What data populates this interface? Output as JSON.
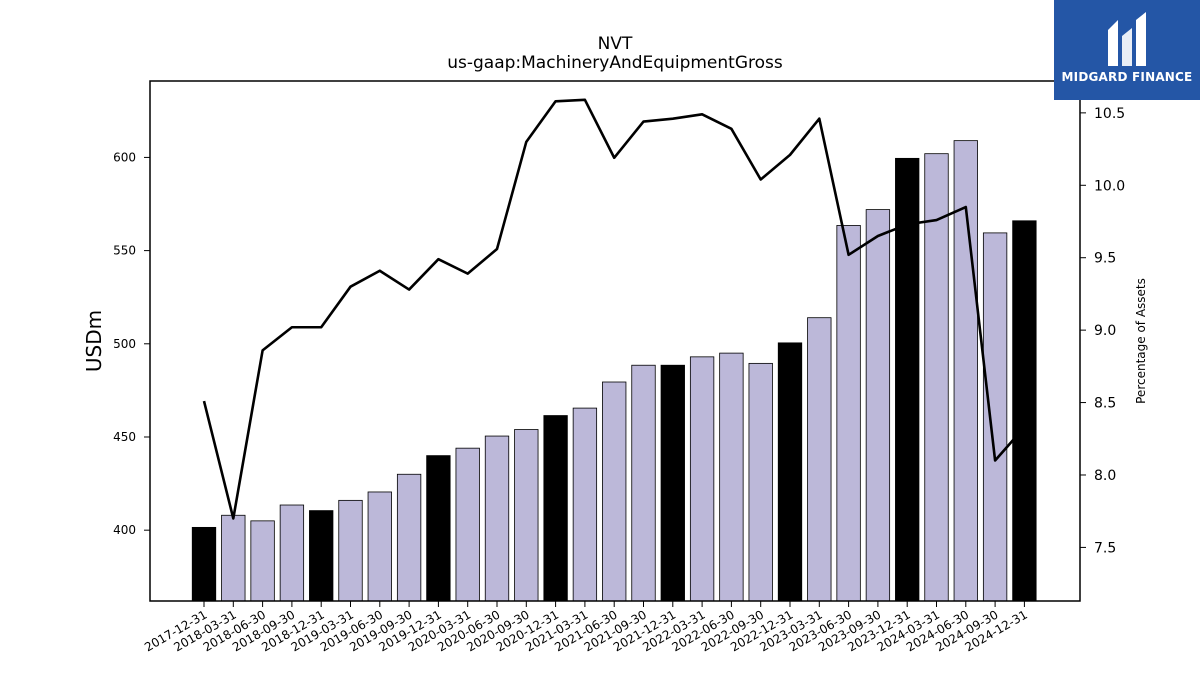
{
  "chart_data": {
    "type": "bar",
    "title": "NVT",
    "subtitle": "us-gaap:MachineryAndEquipmentGross",
    "ylabel": "USDm",
    "y2label": "Percentage of Assets",
    "ylim": [
      362,
      641
    ],
    "y2lim": [
      7.13,
      10.72
    ],
    "yticks": [
      400,
      450,
      500,
      550,
      600
    ],
    "y2ticks": [
      "7.5",
      "8.0",
      "8.5",
      "9.0",
      "9.5",
      "10.0",
      "10.5"
    ],
    "categories": [
      "2017-12-31",
      "2018-03-31",
      "2018-06-30",
      "2018-09-30",
      "2018-12-31",
      "2019-03-31",
      "2019-06-30",
      "2019-09-30",
      "2019-12-31",
      "2020-03-31",
      "2020-06-30",
      "2020-09-30",
      "2020-12-31",
      "2021-03-31",
      "2021-06-30",
      "2021-09-30",
      "2021-12-31",
      "2022-03-31",
      "2022-06-30",
      "2022-09-30",
      "2022-12-31",
      "2023-03-31",
      "2023-06-30",
      "2023-09-30",
      "2023-12-31",
      "2024-03-31",
      "2024-06-30",
      "2024-09-30",
      "2024-12-31"
    ],
    "series": [
      {
        "values": [
          401.5,
          408,
          405,
          413.5,
          410.5,
          416,
          420.5,
          430,
          440,
          444,
          450.5,
          454,
          461.5,
          465.5,
          479.5,
          488.5,
          488.5,
          493,
          495,
          489.5,
          500.5,
          514,
          563.5,
          572,
          599.5,
          602,
          609,
          559.5,
          566
        ]
      },
      {
        "values": [
          8.51,
          7.7,
          8.86,
          9.02,
          9.02,
          9.3,
          9.41,
          9.28,
          9.49,
          9.39,
          9.56,
          10.3,
          10.58,
          10.59,
          10.19,
          10.44,
          10.46,
          10.49,
          10.39,
          10.04,
          10.21,
          10.46,
          9.52,
          9.65,
          9.73,
          9.76,
          9.85,
          8.1,
          8.33
        ]
      }
    ],
    "colors": {
      "annual_bar": "#000000",
      "quarter_bar": "#bcb8d9",
      "line": "#000000"
    },
    "annual_pattern": "every 4th bar (year-end) is black"
  },
  "logo": {
    "text": "MIDGARD FINANCE",
    "bg": "#2456a6"
  }
}
